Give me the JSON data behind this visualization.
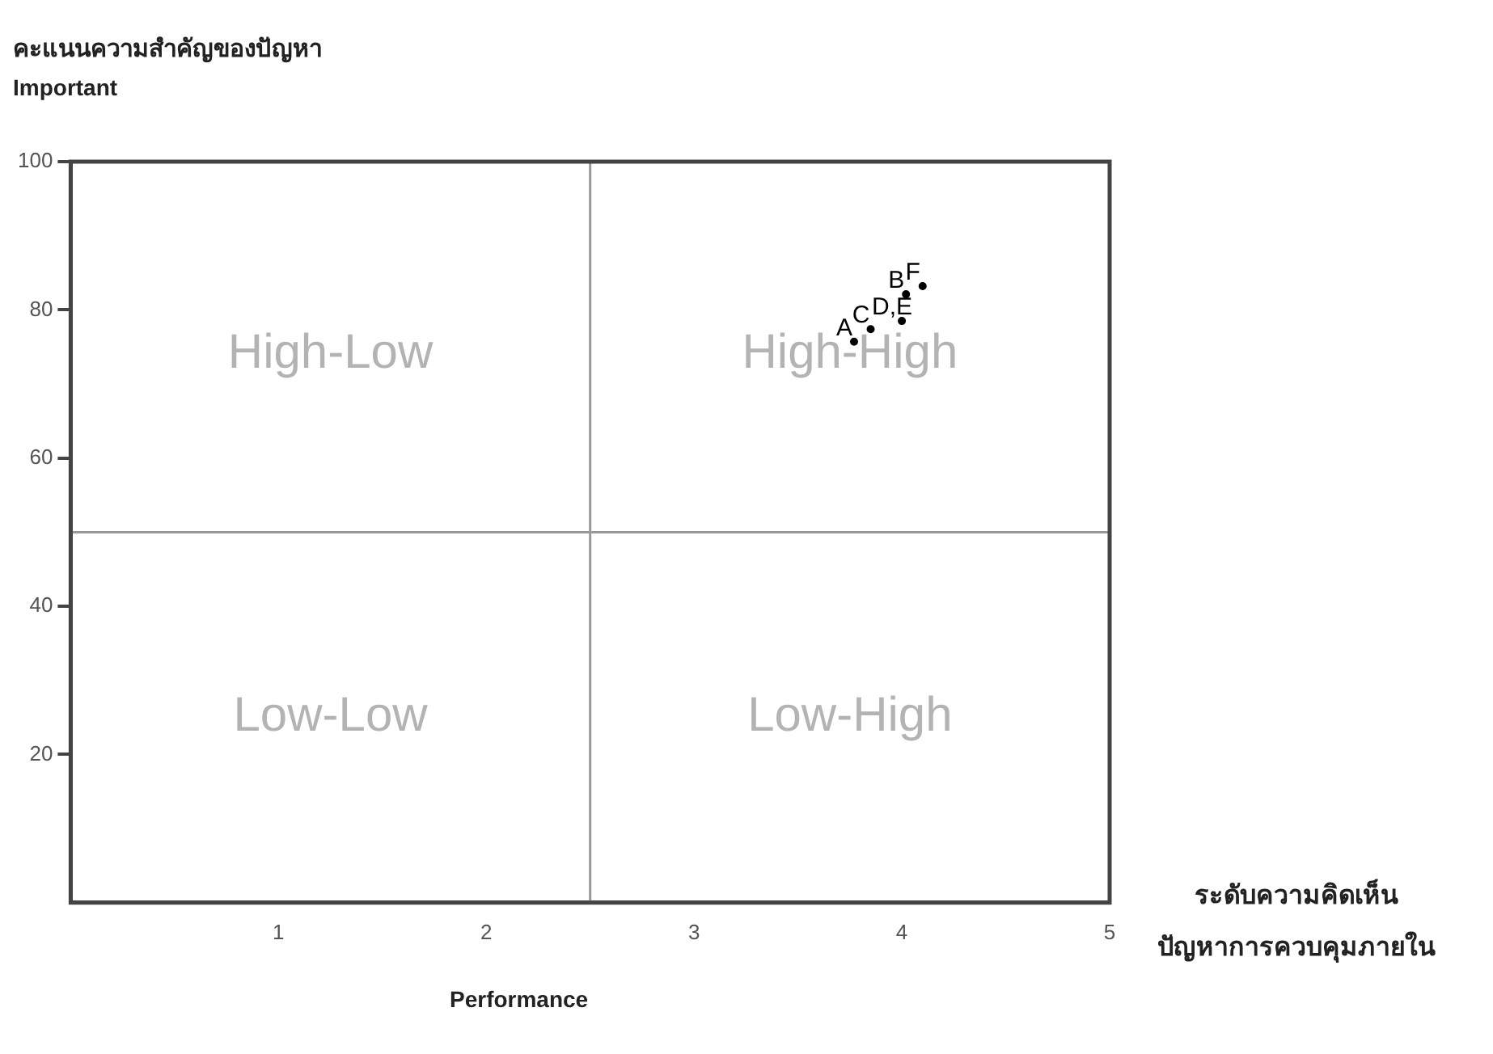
{
  "chart_data": {
    "type": "scatter",
    "title": "คะแนนความสำคัญของปัญหา",
    "ylabel": "Important",
    "xlabel": "Performance",
    "annotations": [
      "High-Low",
      "High-High",
      "Low-Low",
      "Low-High",
      "ระดับความคิดเห็น",
      "ปัญหาการควบคุมภายใน"
    ],
    "series": [
      {
        "x": [
          3.77,
          3.85,
          4.0,
          4.02,
          4.1
        ],
        "values": [
          75.7,
          77.4,
          78.5,
          82.1,
          83.2
        ],
        "value_labels": [
          "A",
          "C",
          "D,E",
          "B",
          "F"
        ],
        "color": "#000000"
      }
    ],
    "xlim": [
      0,
      5
    ],
    "xticks": [
      1,
      2,
      3,
      4,
      5
    ],
    "ylim": [
      0,
      100
    ],
    "yticks": [
      20,
      40,
      60,
      80,
      100
    ],
    "grid": false,
    "legend": false,
    "ref_lines": [
      {
        "axis": "x",
        "value": 2.5,
        "color": "#999999"
      },
      {
        "axis": "y",
        "value": 50,
        "color": "#999999"
      }
    ]
  }
}
